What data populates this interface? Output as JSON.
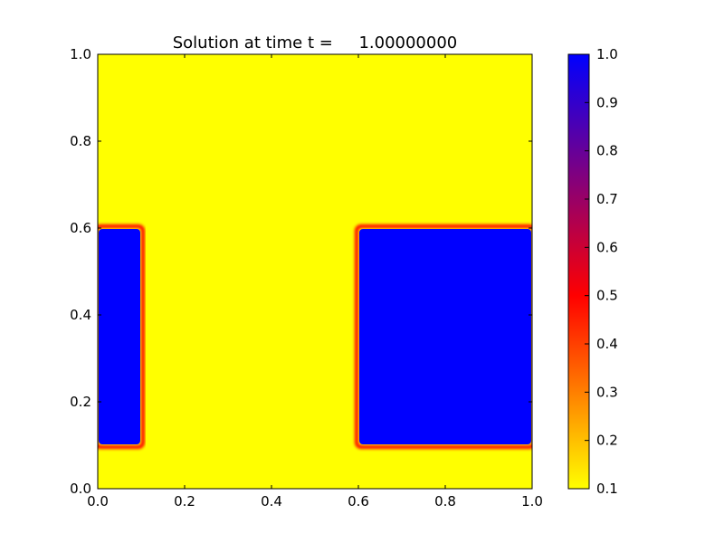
{
  "chart_data": {
    "type": "heatmap",
    "title": "Solution at time t =     1.00000000",
    "xlabel": "",
    "ylabel": "",
    "xlim": [
      0.0,
      1.0
    ],
    "ylim": [
      0.0,
      1.0
    ],
    "x_ticks": [
      "0.0",
      "0.2",
      "0.4",
      "0.6",
      "0.8",
      "1.0"
    ],
    "y_ticks": [
      "0.0",
      "0.2",
      "0.4",
      "0.6",
      "0.8",
      "1.0"
    ],
    "background_value": 0.1,
    "regions": [
      {
        "x": [
          0.0,
          0.1
        ],
        "y": [
          0.1,
          0.6
        ],
        "value": 1.0
      },
      {
        "x": [
          0.6,
          1.0
        ],
        "y": [
          0.1,
          0.6
        ],
        "value": 1.0
      }
    ],
    "colorbar": {
      "range": [
        0.1,
        1.0
      ],
      "ticks": [
        "0.1",
        "0.2",
        "0.3",
        "0.4",
        "0.5",
        "0.6",
        "0.7",
        "0.8",
        "0.9",
        "1.0"
      ],
      "colors": {
        "0.1": "#ffff00",
        "0.5": "#ff0000",
        "1.0": "#0000ff"
      }
    },
    "grid": false
  }
}
